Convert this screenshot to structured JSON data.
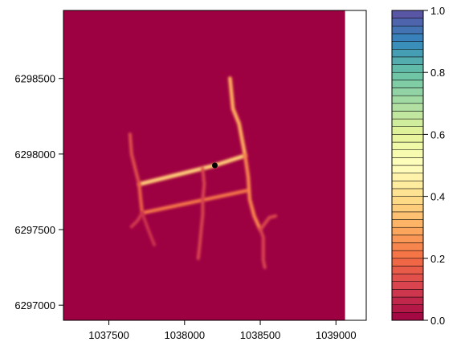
{
  "chart_data": {
    "type": "heatmap",
    "x_ticks": [
      1037500,
      1038000,
      1038500,
      1039000
    ],
    "y_ticks": [
      6297000,
      6297500,
      6298000,
      6298500
    ],
    "x_tick_labels": [
      "1037500",
      "1038000",
      "1038500",
      "1039000"
    ],
    "y_tick_labels": [
      "6297000",
      "6297500",
      "6298000",
      "6298500"
    ],
    "xlim": [
      1037200,
      1039200
    ],
    "ylim": [
      6296900,
      6298950
    ],
    "raster_extent": {
      "xmax": 1039060
    },
    "background_value": 0.0,
    "value_range": [
      0,
      1
    ],
    "color_scale": {
      "breaks": [
        0.0,
        0.2,
        0.4,
        0.6,
        0.8,
        1.0
      ],
      "tick_labels": [
        "0.0",
        "0.2",
        "0.4",
        "0.6",
        "0.8",
        "1.0"
      ],
      "levels": 40,
      "palette": [
        "#9E0142",
        "#D53E4F",
        "#F46D43",
        "#FDAE61",
        "#FEE08B",
        "#FFFFBF",
        "#E6F598",
        "#ABDDA4",
        "#66C2A5",
        "#3288BD",
        "#5E4FA2"
      ]
    },
    "tracks": [
      {
        "points": [
          [
            1038400,
            6297990
          ],
          [
            1038200,
            6297925
          ],
          [
            1037700,
            6297800
          ]
        ],
        "value": 0.36
      },
      {
        "points": [
          [
            1038420,
            6297760
          ],
          [
            1038000,
            6297670
          ],
          [
            1037720,
            6297610
          ]
        ],
        "value": 0.22
      },
      {
        "points": [
          [
            1038400,
            6297990
          ],
          [
            1038360,
            6298200
          ],
          [
            1038320,
            6298300
          ],
          [
            1038300,
            6298500
          ]
        ],
        "value": 0.3
      },
      {
        "points": [
          [
            1038400,
            6297990
          ],
          [
            1038420,
            6297850
          ],
          [
            1038430,
            6297700
          ],
          [
            1038460,
            6297590
          ],
          [
            1038500,
            6297500
          ]
        ],
        "value": 0.24
      },
      {
        "points": [
          [
            1037700,
            6297800
          ],
          [
            1037680,
            6297880
          ],
          [
            1037650,
            6298000
          ],
          [
            1037640,
            6298130
          ]
        ],
        "value": 0.14
      },
      {
        "points": [
          [
            1037700,
            6297800
          ],
          [
            1037710,
            6297700
          ],
          [
            1037720,
            6297610
          ]
        ],
        "value": 0.18
      },
      {
        "points": [
          [
            1038120,
            6297900
          ],
          [
            1038130,
            6297800
          ],
          [
            1038120,
            6297700
          ],
          [
            1038120,
            6297600
          ],
          [
            1038110,
            6297500
          ],
          [
            1038100,
            6297400
          ],
          [
            1038090,
            6297310
          ]
        ],
        "value": 0.12
      },
      {
        "points": [
          [
            1038500,
            6297500
          ],
          [
            1038520,
            6297450
          ],
          [
            1038520,
            6297300
          ],
          [
            1038530,
            6297250
          ]
        ],
        "value": 0.12
      },
      {
        "points": [
          [
            1038500,
            6297500
          ],
          [
            1038560,
            6297580
          ],
          [
            1038600,
            6297590
          ]
        ],
        "value": 0.13
      },
      {
        "points": [
          [
            1037720,
            6297610
          ],
          [
            1037690,
            6297560
          ],
          [
            1037650,
            6297520
          ]
        ],
        "value": 0.1
      },
      {
        "points": [
          [
            1037720,
            6297610
          ],
          [
            1037760,
            6297500
          ],
          [
            1037800,
            6297400
          ]
        ],
        "value": 0.09
      }
    ],
    "point": {
      "x": 1038200,
      "y": 6297925
    }
  }
}
